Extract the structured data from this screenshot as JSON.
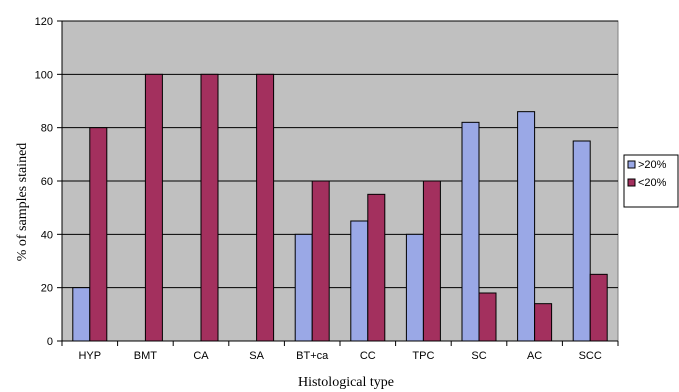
{
  "chart_data": {
    "type": "bar",
    "title": "",
    "xlabel": "Histological type",
    "ylabel": "% of samples stained",
    "ylim": [
      0,
      120
    ],
    "yticks": [
      0,
      20,
      40,
      60,
      80,
      100,
      120
    ],
    "categories": [
      "HYP",
      "BMT",
      "CA",
      "SA",
      "BT+ca",
      "CC",
      "TPC",
      "SC",
      "AC",
      "SCC"
    ],
    "series": [
      {
        "name": ">20%",
        "color": "#9aa8e6",
        "values": [
          20,
          0,
          0,
          0,
          40,
          45,
          40,
          82,
          86,
          75
        ]
      },
      {
        "name": "<20%",
        "color": "#a3305e",
        "values": [
          80,
          100,
          100,
          100,
          60,
          55,
          60,
          18,
          14,
          25
        ]
      }
    ],
    "grid": true,
    "plot_background": "#c0c0c0",
    "legend_position": "right"
  }
}
